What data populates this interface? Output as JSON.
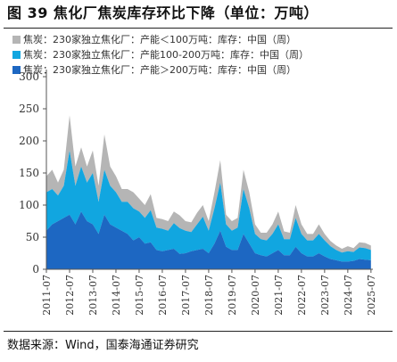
{
  "figure_title": "图 39 焦化厂焦炭库存环比下降（单位：万吨）",
  "source_text": "数据来源：Wind，国泰海通证券研究",
  "colors": {
    "small": "#b5b5b5",
    "mid": "#11a6e0",
    "large": "#1d67c2",
    "axis": "#555555",
    "text": "#111111"
  },
  "chart_data": {
    "type": "area",
    "stacked": true,
    "title": "",
    "xlabel": "",
    "ylabel": "",
    "ylim": [
      0,
      300
    ],
    "yticks": [
      0,
      50,
      100,
      150,
      200,
      250,
      300
    ],
    "xticks": [
      "2011-07",
      "2012-07",
      "2013-07",
      "2014-07",
      "2015-07",
      "2016-07",
      "2017-07",
      "2018-07",
      "2019-07",
      "2020-07",
      "2021-07",
      "2022-07",
      "2023-07",
      "2024-07",
      "2025-07"
    ],
    "xlim": [
      "2011-07",
      "2025-08"
    ],
    "grid": false,
    "legend_position": "top-left",
    "x": [
      "2011-07",
      "2011-10",
      "2012-01",
      "2012-04",
      "2012-07",
      "2012-10",
      "2013-01",
      "2013-04",
      "2013-07",
      "2013-10",
      "2014-01",
      "2014-04",
      "2014-07",
      "2014-10",
      "2015-01",
      "2015-04",
      "2015-07",
      "2015-10",
      "2016-01",
      "2016-04",
      "2016-07",
      "2016-10",
      "2017-01",
      "2017-04",
      "2017-07",
      "2017-10",
      "2018-01",
      "2018-04",
      "2018-07",
      "2018-10",
      "2019-01",
      "2019-04",
      "2019-07",
      "2019-10",
      "2020-01",
      "2020-04",
      "2020-07",
      "2020-10",
      "2021-01",
      "2021-04",
      "2021-07",
      "2021-10",
      "2022-01",
      "2022-04",
      "2022-07",
      "2022-10",
      "2023-01",
      "2023-04",
      "2023-07",
      "2023-10",
      "2024-01",
      "2024-04",
      "2024-07",
      "2024-10",
      "2025-01",
      "2025-04",
      "2025-07"
    ],
    "series": [
      {
        "name": "焦炭：230家独立焦化厂：产能＞200万吨：库存：中国（周）",
        "color": "#1d67c2",
        "values": [
          60,
          70,
          75,
          80,
          85,
          70,
          90,
          75,
          70,
          55,
          85,
          70,
          65,
          60,
          55,
          45,
          50,
          40,
          42,
          30,
          28,
          30,
          32,
          24,
          25,
          28,
          30,
          32,
          25,
          40,
          60,
          35,
          30,
          30,
          55,
          40,
          25,
          22,
          20,
          25,
          30,
          22,
          22,
          35,
          25,
          20,
          20,
          25,
          20,
          16,
          14,
          12,
          12,
          13,
          16,
          15,
          14
        ]
      },
      {
        "name": "焦炭：230家独立焦化厂：产能100-200万吨：库存：中国（周）",
        "color": "#11a6e0",
        "values": [
          60,
          55,
          40,
          50,
          100,
          60,
          70,
          60,
          80,
          50,
          70,
          60,
          55,
          45,
          50,
          50,
          40,
          40,
          50,
          35,
          35,
          30,
          40,
          40,
          35,
          30,
          40,
          50,
          35,
          55,
          75,
          35,
          30,
          35,
          70,
          55,
          30,
          25,
          25,
          30,
          40,
          25,
          25,
          45,
          30,
          25,
          25,
          30,
          25,
          20,
          16,
          14,
          16,
          14,
          18,
          18,
          16
        ]
      },
      {
        "name": "焦炭：230家独立焦化厂：产能＜100万吨：库存：中国（周）",
        "color": "#b5b5b5",
        "values": [
          25,
          30,
          20,
          25,
          55,
          30,
          30,
          25,
          35,
          25,
          55,
          30,
          25,
          20,
          20,
          25,
          20,
          20,
          25,
          15,
          15,
          15,
          18,
          20,
          15,
          15,
          18,
          18,
          15,
          25,
          35,
          15,
          15,
          15,
          30,
          25,
          15,
          10,
          12,
          15,
          20,
          12,
          10,
          20,
          15,
          10,
          10,
          15,
          10,
          8,
          7,
          6,
          8,
          6,
          8,
          8,
          7
        ]
      }
    ]
  }
}
